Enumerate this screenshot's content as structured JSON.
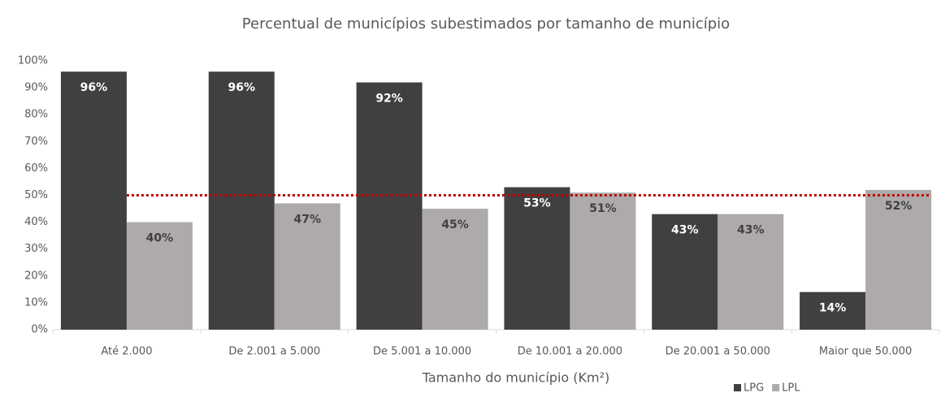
{
  "chart_data": {
    "type": "bar",
    "title": "Percentual de municípios subestimados por tamanho de município",
    "x_label": "Tamanho do município (Km²)",
    "categories": [
      "Até 2.000",
      "De 2.001 a 5.000",
      "De 5.001 a 10.000",
      "De 10.001 a 20.000",
      "De 20.001 a 50.000",
      "Maior que 50.000"
    ],
    "series": [
      {
        "name": "LPG",
        "color": "#404040",
        "label_color": "#ffffff",
        "values": [
          96,
          96,
          92,
          53,
          43,
          14
        ],
        "value_labels": [
          "96%",
          "96%",
          "92%",
          "53%",
          "43%",
          "14%"
        ]
      },
      {
        "name": "LPL",
        "color": "#aeaaaa",
        "label_color": "#404040",
        "values": [
          40,
          47,
          45,
          51,
          43,
          52
        ],
        "value_labels": [
          "40%",
          "47%",
          "45%",
          "51%",
          "43%",
          "52%"
        ]
      }
    ],
    "ylim": [
      0,
      100
    ],
    "yticks": [
      {
        "value": 0,
        "label": "0%"
      },
      {
        "value": 10,
        "label": "10%"
      },
      {
        "value": 20,
        "label": "20%"
      },
      {
        "value": 30,
        "label": "30%"
      },
      {
        "value": 40,
        "label": "40%"
      },
      {
        "value": 50,
        "label": "50%"
      },
      {
        "value": 60,
        "label": "60%"
      },
      {
        "value": 70,
        "label": "70%"
      },
      {
        "value": 80,
        "label": "80%"
      },
      {
        "value": 90,
        "label": "90%"
      },
      {
        "value": 100,
        "label": "100%"
      }
    ],
    "reference_line": {
      "value": 50,
      "color": "#c00000"
    },
    "grid": false,
    "legend": "bottom-right"
  }
}
